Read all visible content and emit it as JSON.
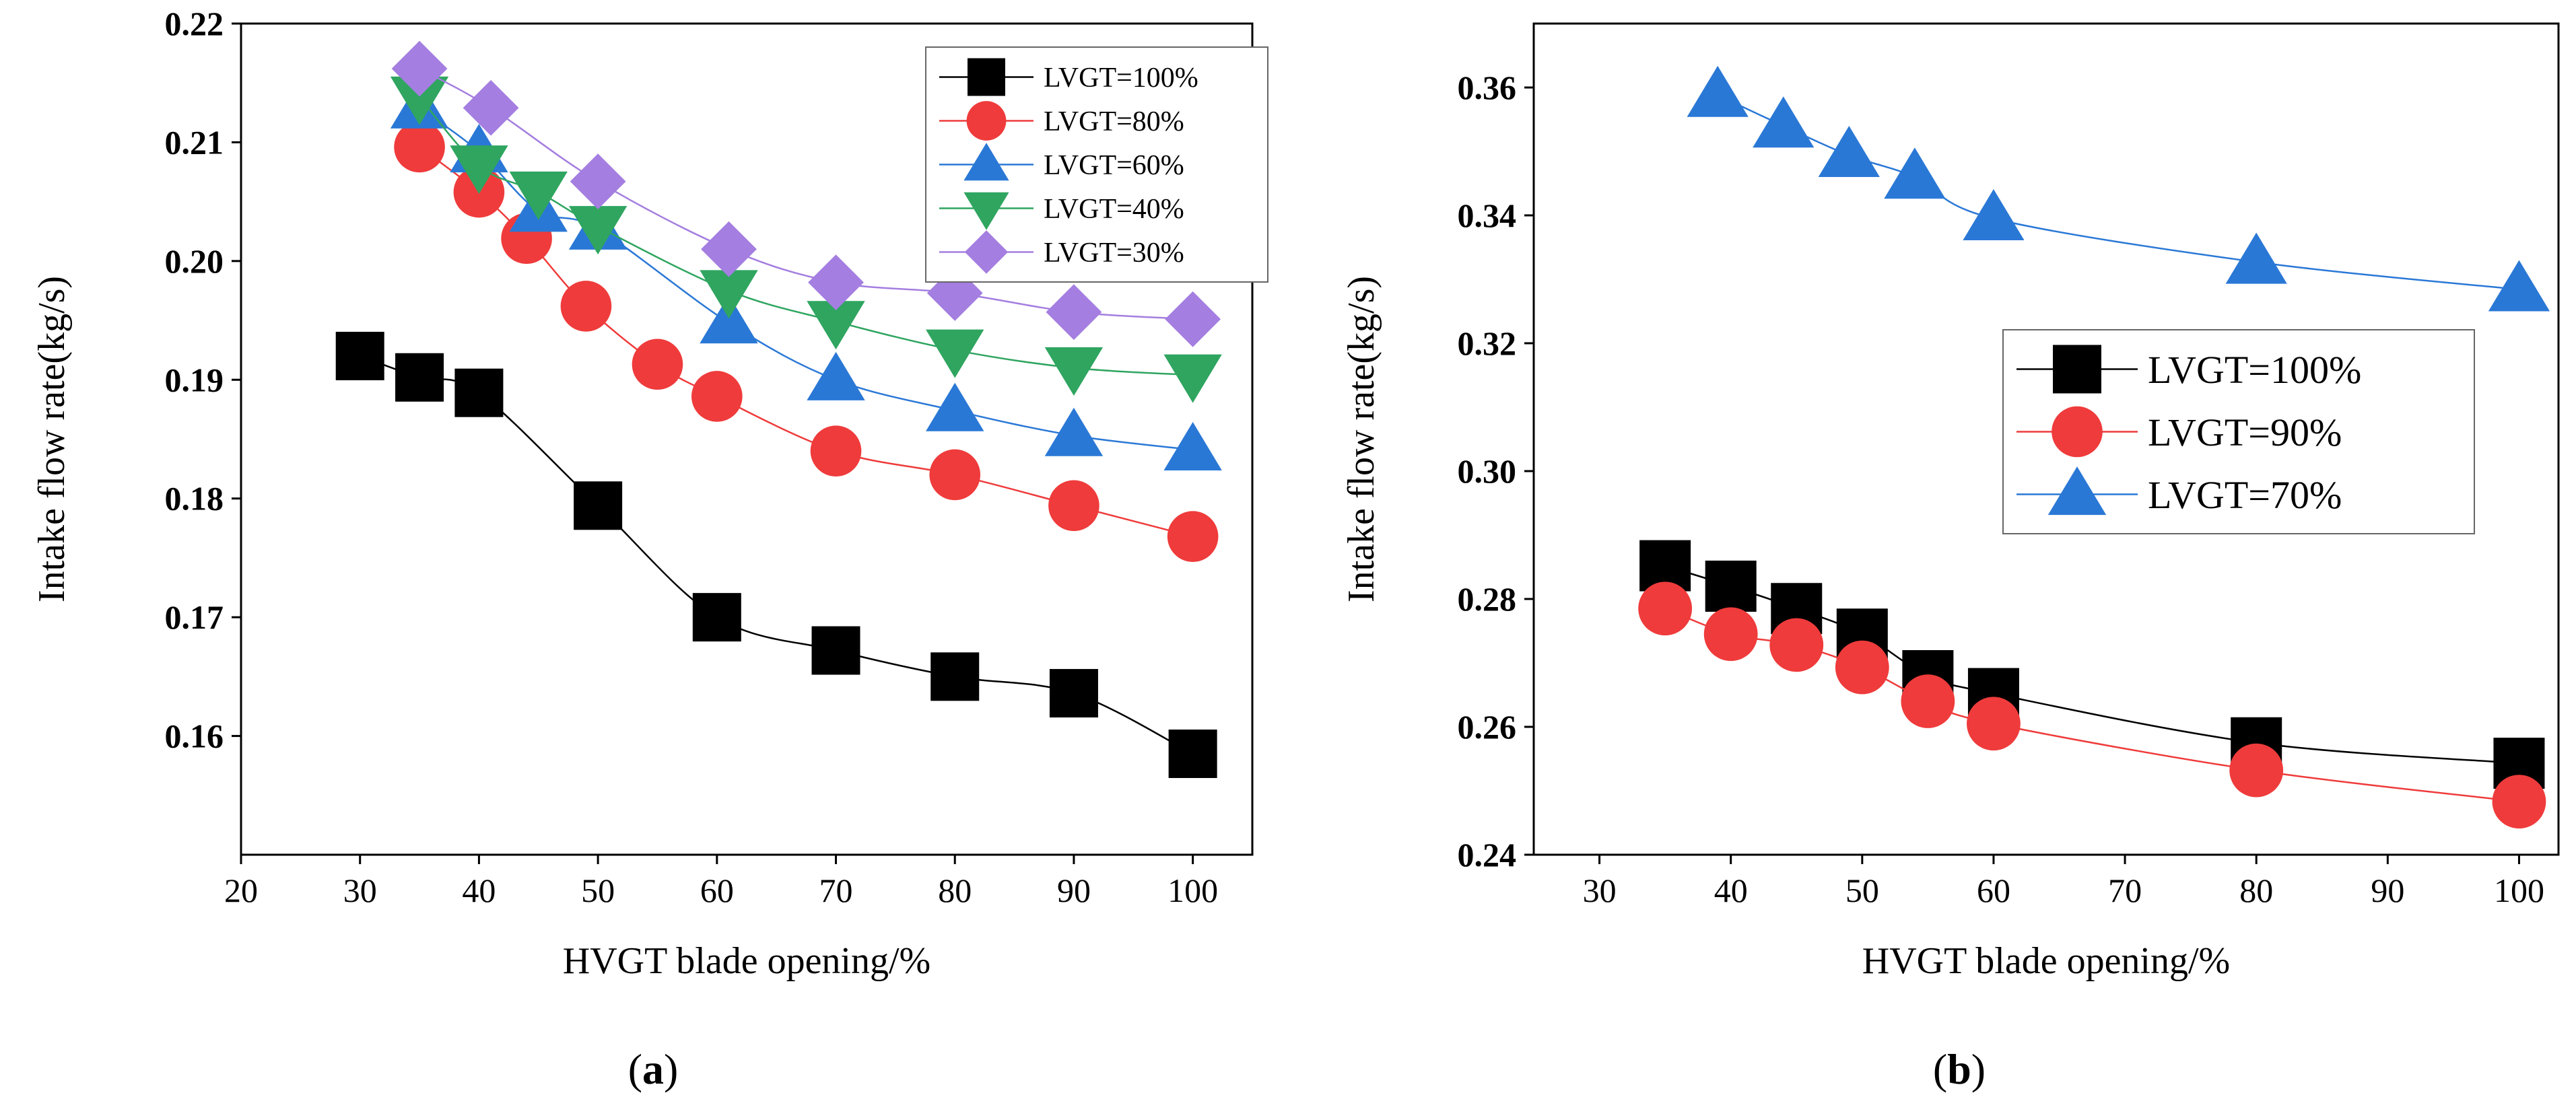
{
  "chart_data": [
    {
      "id": "a",
      "type": "line",
      "caption_open": "(",
      "caption_letter": "a",
      "caption_close": ")",
      "xlabel": "HVGT blade opening/%",
      "ylabel": "Intake flow rate(kg/s)",
      "xlim": [
        20,
        105
      ],
      "ylim": [
        0.15,
        0.22
      ],
      "xticks": [
        20,
        30,
        40,
        50,
        60,
        70,
        80,
        90,
        100
      ],
      "yticks": [
        0.16,
        0.17,
        0.18,
        0.19,
        0.2,
        0.21,
        0.22
      ],
      "ytick_labels": [
        "0.16",
        "0.17",
        "0.18",
        "0.19",
        "0.20",
        "0.21",
        "0.22"
      ],
      "legend_position": "top-right",
      "series": [
        {
          "name": "LVGT=100%",
          "marker": "square",
          "color": "#000000",
          "x": [
            30,
            35,
            40,
            50,
            60,
            70,
            80,
            90,
            100
          ],
          "y": [
            0.192,
            0.1902,
            0.1889,
            0.1794,
            0.17,
            0.1672,
            0.165,
            0.1636,
            0.1585
          ]
        },
        {
          "name": "LVGT=80%",
          "marker": "circle",
          "color": "#ef3b3b",
          "x": [
            35,
            40,
            44,
            49,
            55,
            60,
            70,
            80,
            90,
            100
          ],
          "y": [
            0.2096,
            0.2058,
            0.2019,
            0.1962,
            0.1913,
            0.1886,
            0.184,
            0.182,
            0.1794,
            0.1768
          ]
        },
        {
          "name": "LVGT=60%",
          "marker": "triangle-up",
          "color": "#2a78d6",
          "x": [
            35,
            40,
            45,
            50,
            61,
            70,
            80,
            90,
            100
          ],
          "y": [
            0.2129,
            0.2092,
            0.2042,
            0.2027,
            0.1948,
            0.19,
            0.1874,
            0.1853,
            0.1841
          ]
        },
        {
          "name": "LVGT=40%",
          "marker": "triangle-down",
          "color": "#2fa560",
          "x": [
            35,
            40,
            45,
            50,
            61,
            70,
            80,
            90,
            100
          ],
          "y": [
            0.2138,
            0.208,
            0.2058,
            0.2029,
            0.1975,
            0.1949,
            0.1925,
            0.191,
            0.1904
          ]
        },
        {
          "name": "LVGT=30%",
          "marker": "diamond",
          "color": "#a47ee0",
          "x": [
            35,
            41,
            50,
            61,
            70,
            80,
            90,
            100
          ],
          "y": [
            0.2162,
            0.2129,
            0.2067,
            0.201,
            0.1982,
            0.1973,
            0.1957,
            0.1951
          ]
        }
      ]
    },
    {
      "id": "b",
      "type": "line",
      "caption_open": "(",
      "caption_letter": "b",
      "caption_close": ")",
      "xlabel": "HVGT blade opening/%",
      "ylabel": "Intake flow rate(kg/s)",
      "xlim": [
        25,
        103
      ],
      "ylim": [
        0.24,
        0.37
      ],
      "xticks": [
        30,
        40,
        50,
        60,
        70,
        80,
        90,
        100
      ],
      "yticks": [
        0.24,
        0.26,
        0.28,
        0.3,
        0.32,
        0.34,
        0.36
      ],
      "ytick_labels": [
        "0.24",
        "0.26",
        "0.28",
        "0.30",
        "0.32",
        "0.34",
        "0.36"
      ],
      "legend_position": "center-right",
      "series": [
        {
          "name": "LVGT=100%",
          "marker": "square",
          "color": "#000000",
          "x": [
            35,
            40,
            45,
            50,
            55,
            60,
            80,
            100
          ],
          "y": [
            0.2852,
            0.282,
            0.2785,
            0.2745,
            0.268,
            0.2652,
            0.2575,
            0.2543
          ]
        },
        {
          "name": "LVGT=90%",
          "marker": "circle",
          "color": "#ef3b3b",
          "x": [
            35,
            40,
            45,
            50,
            55,
            60,
            80,
            100
          ],
          "y": [
            0.2785,
            0.2745,
            0.2728,
            0.2693,
            0.264,
            0.2605,
            0.2532,
            0.2483
          ]
        },
        {
          "name": "LVGT=70%",
          "marker": "triangle-up",
          "color": "#2a78d6",
          "x": [
            39,
            44,
            49,
            54,
            60,
            80,
            100
          ],
          "y": [
            0.3588,
            0.354,
            0.3494,
            0.346,
            0.3395,
            0.3327,
            0.3284
          ]
        }
      ]
    }
  ]
}
